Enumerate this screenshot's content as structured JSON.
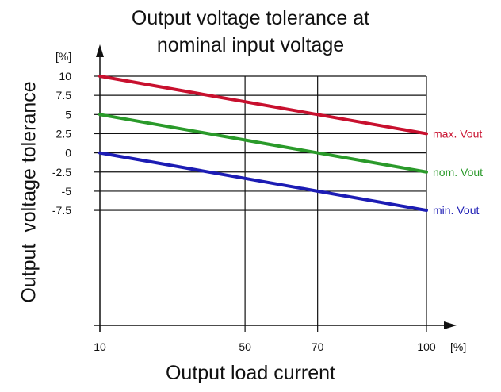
{
  "chart_data": {
    "type": "line",
    "title_line1": "Output  voltage tolerance at",
    "title_line2": "nominal input voltage",
    "xlabel": "Output load current",
    "ylabel": "Output  voltage tolerance",
    "x_unit": "[%]",
    "y_unit": "[%]",
    "xlim": [
      10,
      100
    ],
    "ylim": [
      -22.5,
      10
    ],
    "x_ticks": [
      10,
      50,
      70,
      100
    ],
    "x_tick_labels": [
      "10",
      "50",
      "70",
      "100"
    ],
    "y_ticks": [
      10,
      7.5,
      5,
      2.5,
      0,
      -2.5,
      -5,
      -7.5
    ],
    "y_tick_labels": [
      "10",
      "7.5",
      "5",
      "2.5",
      "0",
      "-2.5",
      "-5",
      "-7.5"
    ],
    "grid": true,
    "legend": "series labels at right end of lines",
    "series": [
      {
        "name": "max. Vout",
        "color": "#c8102e",
        "x": [
          10,
          100
        ],
        "y": [
          10,
          2.5
        ]
      },
      {
        "name": "nom. Vout",
        "color": "#2a9a2a",
        "x": [
          10,
          100
        ],
        "y": [
          5,
          -2.5
        ]
      },
      {
        "name": "min. Vout",
        "color": "#1c1cb4",
        "x": [
          10,
          100
        ],
        "y": [
          0,
          -7.5
        ]
      }
    ]
  }
}
